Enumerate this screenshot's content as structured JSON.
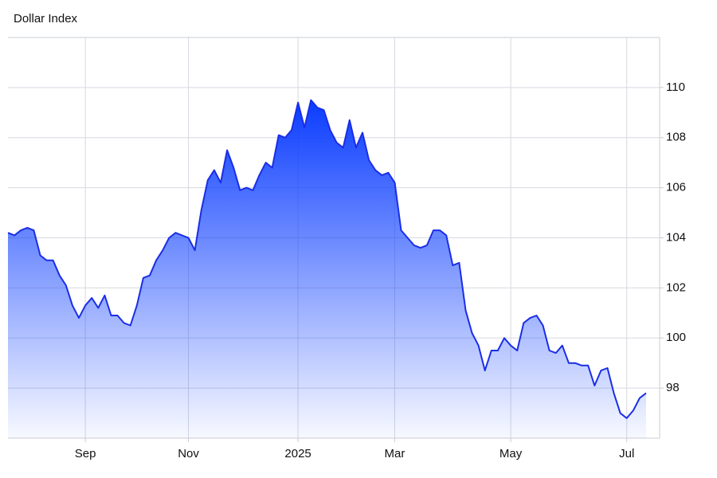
{
  "chart_data": {
    "type": "area",
    "title": "Dollar Index",
    "categories": [
      null,
      null,
      null,
      null,
      null,
      null,
      null,
      null,
      null,
      null,
      null,
      null,
      "Sep",
      null,
      null,
      null,
      null,
      null,
      null,
      null,
      null,
      null,
      null,
      null,
      null,
      null,
      null,
      null,
      "Nov",
      null,
      null,
      null,
      null,
      null,
      null,
      null,
      null,
      null,
      null,
      null,
      null,
      null,
      null,
      null,
      null,
      "2025",
      null,
      null,
      null,
      null,
      null,
      null,
      null,
      null,
      null,
      null,
      null,
      null,
      null,
      null,
      "Mar",
      null,
      null,
      null,
      null,
      null,
      null,
      null,
      null,
      null,
      null,
      null,
      null,
      null,
      null,
      null,
      null,
      null,
      "May",
      null,
      null,
      null,
      null,
      null,
      null,
      null,
      null,
      null,
      null,
      null,
      null,
      null,
      null,
      null,
      null,
      null,
      "Jul",
      null,
      null,
      null
    ],
    "values": [
      104.2,
      104.1,
      104.3,
      104.4,
      104.3,
      103.3,
      103.1,
      103.1,
      102.5,
      102.1,
      101.3,
      100.8,
      101.3,
      101.6,
      101.2,
      101.7,
      100.9,
      100.9,
      100.6,
      100.5,
      101.3,
      102.4,
      102.5,
      103.1,
      103.5,
      104.0,
      104.2,
      104.1,
      104.0,
      103.5,
      105.1,
      106.3,
      106.7,
      106.2,
      107.5,
      106.8,
      105.9,
      106.0,
      105.9,
      106.5,
      107.0,
      106.8,
      108.1,
      108.0,
      108.3,
      109.4,
      108.4,
      109.5,
      109.2,
      109.1,
      108.3,
      107.8,
      107.6,
      108.7,
      107.6,
      108.2,
      107.1,
      106.7,
      106.5,
      106.6,
      106.2,
      104.3,
      104.0,
      103.7,
      103.6,
      103.7,
      104.3,
      104.3,
      104.1,
      102.9,
      103.0,
      101.1,
      100.2,
      99.7,
      98.7,
      99.5,
      99.5,
      100.0,
      99.7,
      99.5,
      100.6,
      100.8,
      100.9,
      100.5,
      99.5,
      99.4,
      99.7,
      99.0,
      99.0,
      98.9,
      98.9,
      98.1,
      98.7,
      98.8,
      97.8,
      97.0,
      96.8,
      97.1,
      97.6,
      97.8
    ],
    "color": "#1a2ee6",
    "fill_color": "#0a3cff",
    "ylim": [
      96,
      112
    ],
    "yticks": [
      98,
      100,
      102,
      104,
      106,
      108,
      110
    ],
    "grid": true
  }
}
